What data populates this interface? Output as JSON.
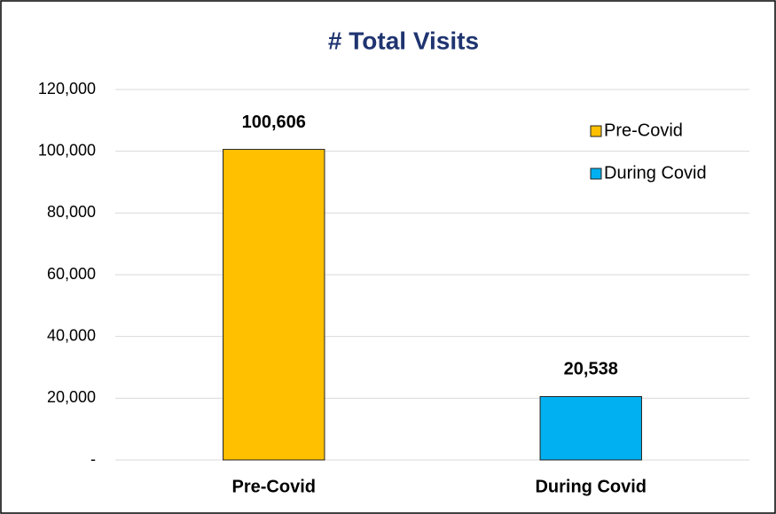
{
  "chart_data": {
    "type": "bar",
    "title": "# Total Visits",
    "categories": [
      "Pre-Covid",
      "During Covid"
    ],
    "values": [
      100606,
      20538
    ],
    "value_labels": [
      "100,606",
      "20,538"
    ],
    "colors": [
      "#ffc000",
      "#00b0f0"
    ],
    "ylim": [
      0,
      120000
    ],
    "yticks": [
      {
        "value": 0,
        "label": "-"
      },
      {
        "value": 20000,
        "label": "20,000"
      },
      {
        "value": 40000,
        "label": "40,000"
      },
      {
        "value": 60000,
        "label": "60,000"
      },
      {
        "value": 80000,
        "label": "80,000"
      },
      {
        "value": 100000,
        "label": "100,000"
      },
      {
        "value": 120000,
        "label": "120,000"
      }
    ],
    "grid": true,
    "legend": "top-right"
  }
}
